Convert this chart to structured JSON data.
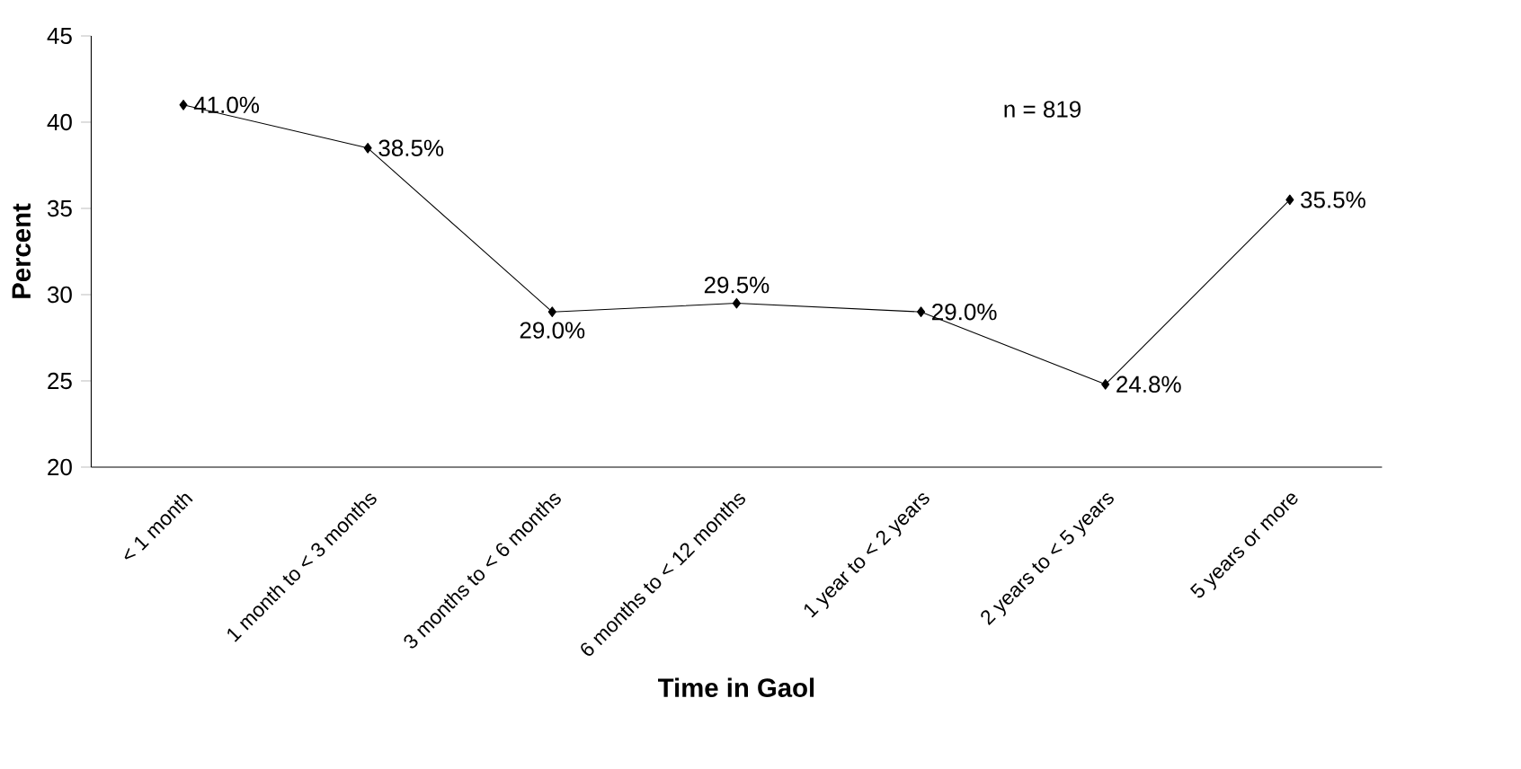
{
  "chart_data": {
    "type": "line",
    "xlabel": "Time in Gaol",
    "ylabel": "Percent",
    "categories": [
      "< 1 month",
      "1 month to < 3 months",
      "3 months to < 6 months",
      "6 months to < 12 months",
      "1 year to < 2 years",
      "2 years to < 5 years",
      "5 years or more"
    ],
    "series": [
      {
        "color": "#000000",
        "values": [
          41.0,
          38.5,
          29.0,
          29.5,
          29.0,
          24.8,
          35.5
        ],
        "value_labels": [
          "41.0%",
          "38.5%",
          "29.0%",
          "29.5%",
          "29.0%",
          "24.8%",
          "35.5%"
        ]
      }
    ],
    "ylim": [
      20,
      45
    ],
    "yticks": [
      20,
      25,
      30,
      35,
      40,
      45
    ],
    "marker": "diamond",
    "line_style": "solid",
    "grid": false,
    "annotations": [
      "n = 819"
    ]
  }
}
